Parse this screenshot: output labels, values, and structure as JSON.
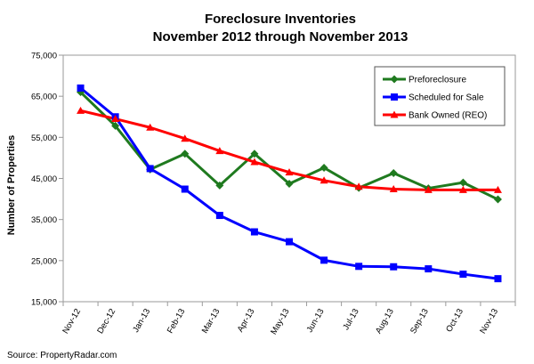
{
  "chart_data": {
    "type": "line",
    "title": [
      "Foreclosure Inventories",
      "November 2012 through November 2013"
    ],
    "xlabel": "",
    "ylabel": "Number of Properties",
    "categories": [
      "Nov-12",
      "Dec-12",
      "Jan-13",
      "Feb-13",
      "Mar-13",
      "Apr-13",
      "May-13",
      "Jun-13",
      "Jul-13",
      "Aug-13",
      "Sep-13",
      "Oct-13",
      "Nov-13"
    ],
    "ylim": [
      15000,
      75000
    ],
    "yticks": [
      15000,
      25000,
      35000,
      45000,
      55000,
      65000,
      75000
    ],
    "ytick_labels": [
      "15,000",
      "25,000",
      "35,000",
      "45,000",
      "55,000",
      "65,000",
      "75,000"
    ],
    "grid": false,
    "legend_position": "top-right",
    "series": [
      {
        "name": "Preforeclosure",
        "color": "#1f7a1f",
        "marker": "diamond",
        "values": [
          66000,
          57800,
          47200,
          51000,
          43300,
          51000,
          43700,
          47600,
          42700,
          46300,
          42600,
          44000,
          39900
        ]
      },
      {
        "name": "Scheduled for Sale",
        "color": "#0000ff",
        "marker": "square",
        "values": [
          67000,
          60000,
          47400,
          42400,
          36000,
          32000,
          29600,
          25100,
          23600,
          23500,
          23000,
          21700,
          20600
        ]
      },
      {
        "name": "Bank Owned (REO)",
        "color": "#ff0000",
        "marker": "triangle",
        "values": [
          61500,
          59500,
          57400,
          54700,
          51700,
          49000,
          46500,
          44500,
          43000,
          42400,
          42200,
          42200,
          42200
        ]
      }
    ]
  },
  "source": "Source: PropertyRadar.com"
}
